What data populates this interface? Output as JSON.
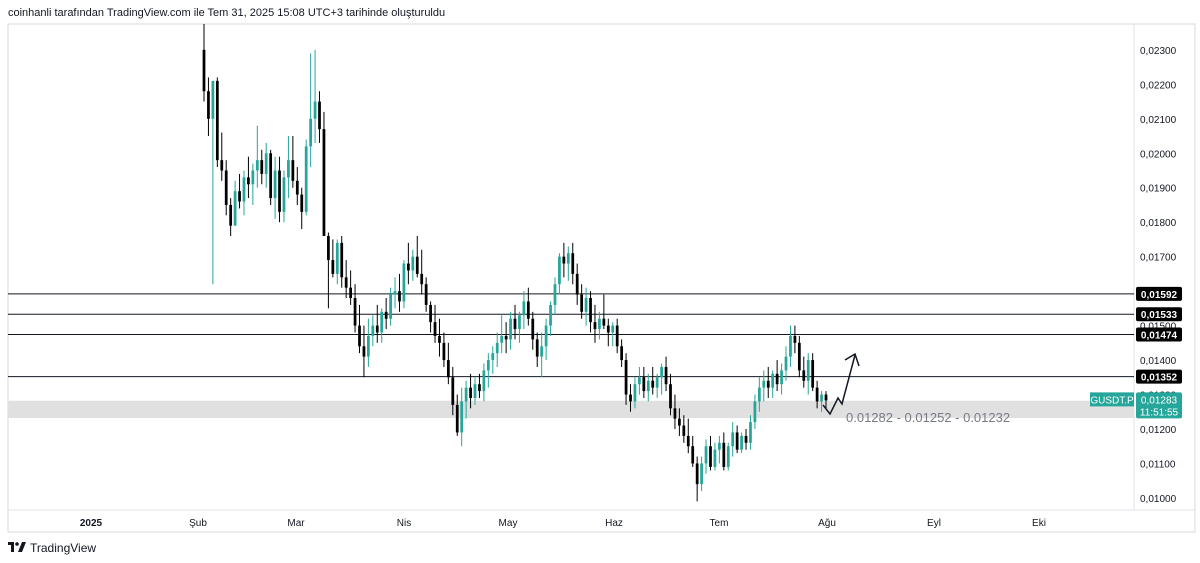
{
  "header": {
    "text": "coinhanli tarafından TradingView.com ile Tem 31, 2025 15:08 UTC+3 tarihinde oluşturuldu"
  },
  "footer": {
    "brand": "TradingView",
    "logo_icon": "tradingview-logo-icon"
  },
  "chart_data": {
    "type": "candlestick",
    "symbol": "GUSDT.P",
    "last_price": "0,01283",
    "countdown": "11:51:55",
    "ylim": [
      0.00965,
      0.02375
    ],
    "y_ticks": [
      "0,02300",
      "0,02200",
      "0,02100",
      "0,02000",
      "0,01900",
      "0,01800",
      "0,01700",
      "0,01600",
      "0,01500",
      "0,01400",
      "0,01300",
      "0,01200",
      "0,01100",
      "0,01000"
    ],
    "x_ticks": [
      "2025",
      "Şub",
      "Mar",
      "Nis",
      "May",
      "Haz",
      "Tem",
      "Ağu",
      "Eyl",
      "Eki"
    ],
    "horizontal_lines": [
      {
        "value": 0.01592,
        "label": "0,01592"
      },
      {
        "value": 0.01533,
        "label": "0,01533"
      },
      {
        "value": 0.01474,
        "label": "0,01474"
      },
      {
        "value": 0.01352,
        "label": "0,01352"
      }
    ],
    "zone": {
      "low": 0.01232,
      "high": 0.01282,
      "label": "0.01282 - 0.01252 - 0.01232"
    },
    "colors": {
      "up": "#26a69a",
      "down": "#000000",
      "zone": "#e0e0e0",
      "price_tag": "#26a69a"
    },
    "candles": [
      [
        0.023,
        0.0238,
        0.0215,
        0.0218
      ],
      [
        0.0218,
        0.0222,
        0.0205,
        0.021
      ],
      [
        0.021,
        0.022,
        0.0162,
        0.0221
      ],
      [
        0.0221,
        0.0222,
        0.0196,
        0.0198
      ],
      [
        0.0198,
        0.0206,
        0.0192,
        0.0195
      ],
      [
        0.0195,
        0.0198,
        0.0182,
        0.0185
      ],
      [
        0.0185,
        0.0187,
        0.0176,
        0.0179
      ],
      [
        0.0179,
        0.0192,
        0.0179,
        0.0189
      ],
      [
        0.0189,
        0.0194,
        0.0184,
        0.0186
      ],
      [
        0.0186,
        0.0195,
        0.0182,
        0.0193
      ],
      [
        0.0193,
        0.0199,
        0.0187,
        0.0191
      ],
      [
        0.0191,
        0.0197,
        0.0185,
        0.0195
      ],
      [
        0.0195,
        0.0208,
        0.019,
        0.0198
      ],
      [
        0.0198,
        0.0201,
        0.0191,
        0.0194
      ],
      [
        0.0194,
        0.0203,
        0.019,
        0.02
      ],
      [
        0.02,
        0.0201,
        0.0185,
        0.0187
      ],
      [
        0.0187,
        0.0199,
        0.0181,
        0.0195
      ],
      [
        0.0195,
        0.0199,
        0.018,
        0.0183
      ],
      [
        0.0183,
        0.0195,
        0.018,
        0.0193
      ],
      [
        0.0193,
        0.0205,
        0.0187,
        0.0198
      ],
      [
        0.0198,
        0.0205,
        0.019,
        0.0192
      ],
      [
        0.0192,
        0.0196,
        0.0185,
        0.0188
      ],
      [
        0.0188,
        0.019,
        0.0178,
        0.0183
      ],
      [
        0.0183,
        0.0204,
        0.0182,
        0.0202
      ],
      [
        0.0202,
        0.0229,
        0.0196,
        0.021
      ],
      [
        0.021,
        0.023,
        0.0203,
        0.0215
      ],
      [
        0.0215,
        0.0218,
        0.0203,
        0.0207
      ],
      [
        0.0207,
        0.0212,
        0.0176,
        0.0176
      ],
      [
        0.0176,
        0.0177,
        0.0155,
        0.0169
      ],
      [
        0.0169,
        0.0175,
        0.0164,
        0.0165
      ],
      [
        0.0165,
        0.0175,
        0.0162,
        0.0174
      ],
      [
        0.0174,
        0.0176,
        0.0161,
        0.0164
      ],
      [
        0.0164,
        0.0169,
        0.0158,
        0.0161
      ],
      [
        0.0161,
        0.0166,
        0.0156,
        0.0158
      ],
      [
        0.0158,
        0.0162,
        0.0148,
        0.015
      ],
      [
        0.015,
        0.0156,
        0.0142,
        0.0144
      ],
      [
        0.0144,
        0.015,
        0.0135,
        0.0141
      ],
      [
        0.0141,
        0.0152,
        0.0138,
        0.0147
      ],
      [
        0.0147,
        0.0153,
        0.0144,
        0.015
      ],
      [
        0.015,
        0.0156,
        0.0145,
        0.0148
      ],
      [
        0.0148,
        0.0155,
        0.0145,
        0.0154
      ],
      [
        0.0154,
        0.0158,
        0.0149,
        0.0152
      ],
      [
        0.0152,
        0.0161,
        0.015,
        0.0159
      ],
      [
        0.0159,
        0.0164,
        0.0155,
        0.016
      ],
      [
        0.016,
        0.0165,
        0.0154,
        0.0157
      ],
      [
        0.0157,
        0.0169,
        0.0155,
        0.0168
      ],
      [
        0.0168,
        0.0174,
        0.0162,
        0.0166
      ],
      [
        0.0166,
        0.0172,
        0.0163,
        0.017
      ],
      [
        0.017,
        0.0176,
        0.0164,
        0.0165
      ],
      [
        0.0165,
        0.0172,
        0.0159,
        0.0162
      ],
      [
        0.0162,
        0.0164,
        0.0154,
        0.0156
      ],
      [
        0.0156,
        0.0157,
        0.0148,
        0.0151
      ],
      [
        0.0151,
        0.0156,
        0.0145,
        0.0147
      ],
      [
        0.0147,
        0.0152,
        0.0141,
        0.0145
      ],
      [
        0.0145,
        0.0148,
        0.0138,
        0.014
      ],
      [
        0.014,
        0.0145,
        0.0133,
        0.0135
      ],
      [
        0.0135,
        0.0138,
        0.0124,
        0.0127
      ],
      [
        0.0127,
        0.013,
        0.0118,
        0.0119
      ],
      [
        0.0119,
        0.0132,
        0.0115,
        0.0128
      ],
      [
        0.0128,
        0.0134,
        0.0123,
        0.0132
      ],
      [
        0.0132,
        0.0136,
        0.0126,
        0.0129
      ],
      [
        0.0129,
        0.0135,
        0.0127,
        0.0133
      ],
      [
        0.0133,
        0.0136,
        0.0129,
        0.0131
      ],
      [
        0.0131,
        0.0139,
        0.0128,
        0.0137
      ],
      [
        0.0137,
        0.0142,
        0.0132,
        0.014
      ],
      [
        0.014,
        0.0144,
        0.0136,
        0.0142
      ],
      [
        0.0142,
        0.0148,
        0.0138,
        0.0145
      ],
      [
        0.0145,
        0.0153,
        0.0142,
        0.0147
      ],
      [
        0.0147,
        0.0151,
        0.0142,
        0.0146
      ],
      [
        0.0146,
        0.0154,
        0.0143,
        0.0152
      ],
      [
        0.0152,
        0.0156,
        0.0146,
        0.0149
      ],
      [
        0.0149,
        0.0154,
        0.0145,
        0.0153
      ],
      [
        0.0153,
        0.016,
        0.0149,
        0.0157
      ],
      [
        0.0157,
        0.0161,
        0.015,
        0.0152
      ],
      [
        0.0152,
        0.0154,
        0.0143,
        0.0146
      ],
      [
        0.0146,
        0.0148,
        0.0138,
        0.0141
      ],
      [
        0.0141,
        0.0148,
        0.0135,
        0.0144
      ],
      [
        0.0144,
        0.0152,
        0.014,
        0.015
      ],
      [
        0.015,
        0.0157,
        0.0147,
        0.0156
      ],
      [
        0.0156,
        0.0164,
        0.0153,
        0.0162
      ],
      [
        0.0162,
        0.0171,
        0.0159,
        0.017
      ],
      [
        0.017,
        0.0174,
        0.0164,
        0.0168
      ],
      [
        0.0168,
        0.0173,
        0.0163,
        0.0171
      ],
      [
        0.0171,
        0.0174,
        0.0162,
        0.0165
      ],
      [
        0.0165,
        0.0168,
        0.0156,
        0.0159
      ],
      [
        0.0159,
        0.0162,
        0.0152,
        0.0154
      ],
      [
        0.0154,
        0.0161,
        0.015,
        0.0158
      ],
      [
        0.0158,
        0.016,
        0.0148,
        0.0151
      ],
      [
        0.0151,
        0.0156,
        0.0145,
        0.0149
      ],
      [
        0.0149,
        0.0154,
        0.0146,
        0.0152
      ],
      [
        0.0152,
        0.0159,
        0.0149,
        0.015
      ],
      [
        0.015,
        0.0152,
        0.0144,
        0.0148
      ],
      [
        0.0148,
        0.0151,
        0.0144,
        0.015
      ],
      [
        0.015,
        0.0152,
        0.0142,
        0.0144
      ],
      [
        0.0144,
        0.0146,
        0.0138,
        0.014
      ],
      [
        0.014,
        0.0142,
        0.0127,
        0.013
      ],
      [
        0.013,
        0.0133,
        0.0125,
        0.0128
      ],
      [
        0.0128,
        0.0135,
        0.0126,
        0.0133
      ],
      [
        0.0133,
        0.0138,
        0.013,
        0.0135
      ],
      [
        0.0135,
        0.0138,
        0.0129,
        0.0131
      ],
      [
        0.0131,
        0.0136,
        0.0128,
        0.0134
      ],
      [
        0.0134,
        0.0138,
        0.013,
        0.0132
      ],
      [
        0.0132,
        0.0136,
        0.0129,
        0.0135
      ],
      [
        0.0135,
        0.0139,
        0.013,
        0.0138
      ],
      [
        0.0138,
        0.0141,
        0.0131,
        0.0133
      ],
      [
        0.0133,
        0.0136,
        0.0124,
        0.0126
      ],
      [
        0.0126,
        0.013,
        0.012,
        0.0123
      ],
      [
        0.0123,
        0.0126,
        0.0118,
        0.0121
      ],
      [
        0.0121,
        0.0124,
        0.0116,
        0.0118
      ],
      [
        0.0118,
        0.0123,
        0.0113,
        0.0115
      ],
      [
        0.0115,
        0.0118,
        0.0109,
        0.011
      ],
      [
        0.011,
        0.0112,
        0.0099,
        0.0104
      ],
      [
        0.0104,
        0.0112,
        0.0102,
        0.011
      ],
      [
        0.011,
        0.0117,
        0.0107,
        0.0115
      ],
      [
        0.0115,
        0.0118,
        0.0108,
        0.0109
      ],
      [
        0.0109,
        0.0116,
        0.0108,
        0.0114
      ],
      [
        0.0114,
        0.0118,
        0.011,
        0.0116
      ],
      [
        0.0116,
        0.0119,
        0.0108,
        0.0109
      ],
      [
        0.0109,
        0.0116,
        0.0108,
        0.0115
      ],
      [
        0.0115,
        0.0122,
        0.0112,
        0.0119
      ],
      [
        0.0119,
        0.0121,
        0.0113,
        0.0114
      ],
      [
        0.0114,
        0.0119,
        0.0113,
        0.0118
      ],
      [
        0.0118,
        0.012,
        0.0114,
        0.0116
      ],
      [
        0.0116,
        0.0124,
        0.0114,
        0.0122
      ],
      [
        0.0122,
        0.013,
        0.012,
        0.0128
      ],
      [
        0.0128,
        0.0135,
        0.0125,
        0.0132
      ],
      [
        0.0132,
        0.0137,
        0.0128,
        0.0134
      ],
      [
        0.0134,
        0.0138,
        0.0129,
        0.0132
      ],
      [
        0.0132,
        0.0137,
        0.0129,
        0.0136
      ],
      [
        0.0136,
        0.014,
        0.0131,
        0.0133
      ],
      [
        0.0133,
        0.0139,
        0.013,
        0.0137
      ],
      [
        0.0137,
        0.0144,
        0.0134,
        0.0141
      ],
      [
        0.0141,
        0.015,
        0.0138,
        0.0147
      ],
      [
        0.0147,
        0.015,
        0.0142,
        0.0145
      ],
      [
        0.0145,
        0.0147,
        0.0135,
        0.0137
      ],
      [
        0.0137,
        0.0141,
        0.0132,
        0.0134
      ],
      [
        0.0134,
        0.0142,
        0.013,
        0.014
      ],
      [
        0.014,
        0.0142,
        0.0131,
        0.0132
      ],
      [
        0.0132,
        0.0134,
        0.0126,
        0.0128
      ],
      [
        0.0128,
        0.0131,
        0.0125,
        0.013
      ],
      [
        0.013,
        0.0131,
        0.0126,
        0.01283
      ]
    ]
  }
}
